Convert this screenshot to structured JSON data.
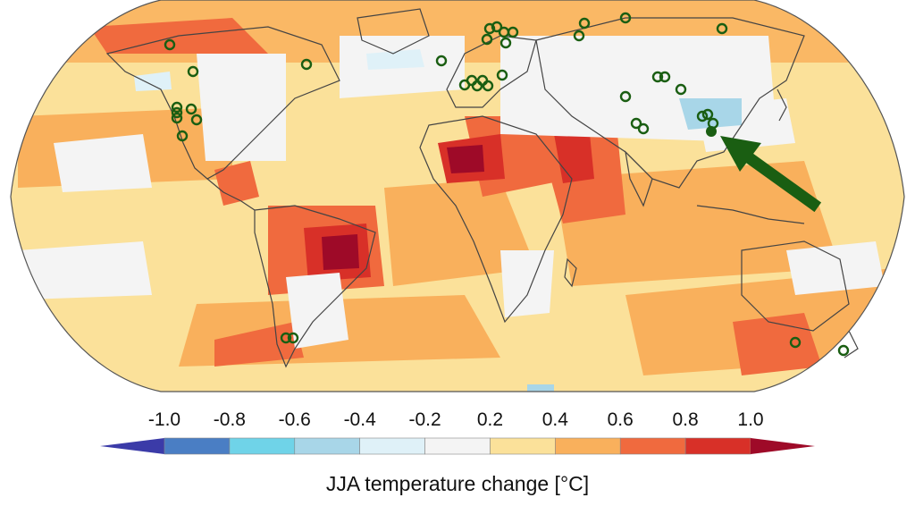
{
  "colorbar": {
    "title": "JJA temperature change [°C]",
    "ticks": [
      "-1.0",
      "-0.8",
      "-0.6",
      "-0.4",
      "-0.2",
      "0.2",
      "0.4",
      "0.6",
      "0.8",
      "1.0"
    ],
    "colors": [
      "#3b3ba8",
      "#4a7ec4",
      "#6fd3e8",
      "#a8d6e8",
      "#dff1f8",
      "#f4f4f4",
      "#fbe19a",
      "#f9b05c",
      "#f06a3e",
      "#d83028",
      "#9e0a28"
    ]
  },
  "map": {
    "projection": "Robinson-like global map",
    "ocean_base_color": "#fbe19a",
    "station_marker_color": "#1a5e12",
    "highlight_arrow_color": "#1a5e12"
  }
}
